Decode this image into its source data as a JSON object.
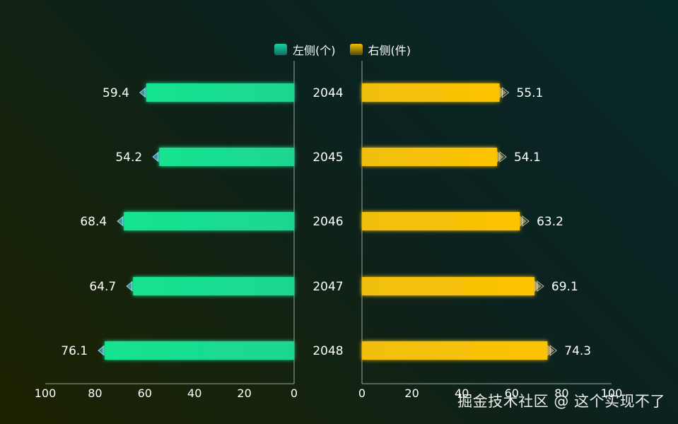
{
  "chart_data": {
    "type": "bar",
    "categories": [
      "2044",
      "2045",
      "2046",
      "2047",
      "2048"
    ],
    "series": [
      {
        "name": "左侧(个)",
        "side": "left",
        "values": [
          59.4,
          54.2,
          68.4,
          64.7,
          76.1
        ]
      },
      {
        "name": "右侧(件)",
        "side": "right",
        "values": [
          55.1,
          54.1,
          63.2,
          69.1,
          74.3
        ]
      }
    ],
    "xlim": [
      0,
      100
    ],
    "left_ticks": [
      "100",
      "80",
      "60",
      "40",
      "20",
      "0"
    ],
    "right_ticks": [
      "0",
      "20",
      "40",
      "60",
      "80",
      "100"
    ],
    "legend_position": "top-center",
    "grid": false
  },
  "colors": {
    "left_bar": "#19e08f",
    "right_bar": "#f8c106",
    "left_swatch": "#17d39a",
    "right_swatch": "#f1c003"
  },
  "legend": {
    "left_label": "左侧(个)",
    "right_label": "右侧(件)"
  },
  "watermark": "掘金技术社区 @ 这个实现不了"
}
